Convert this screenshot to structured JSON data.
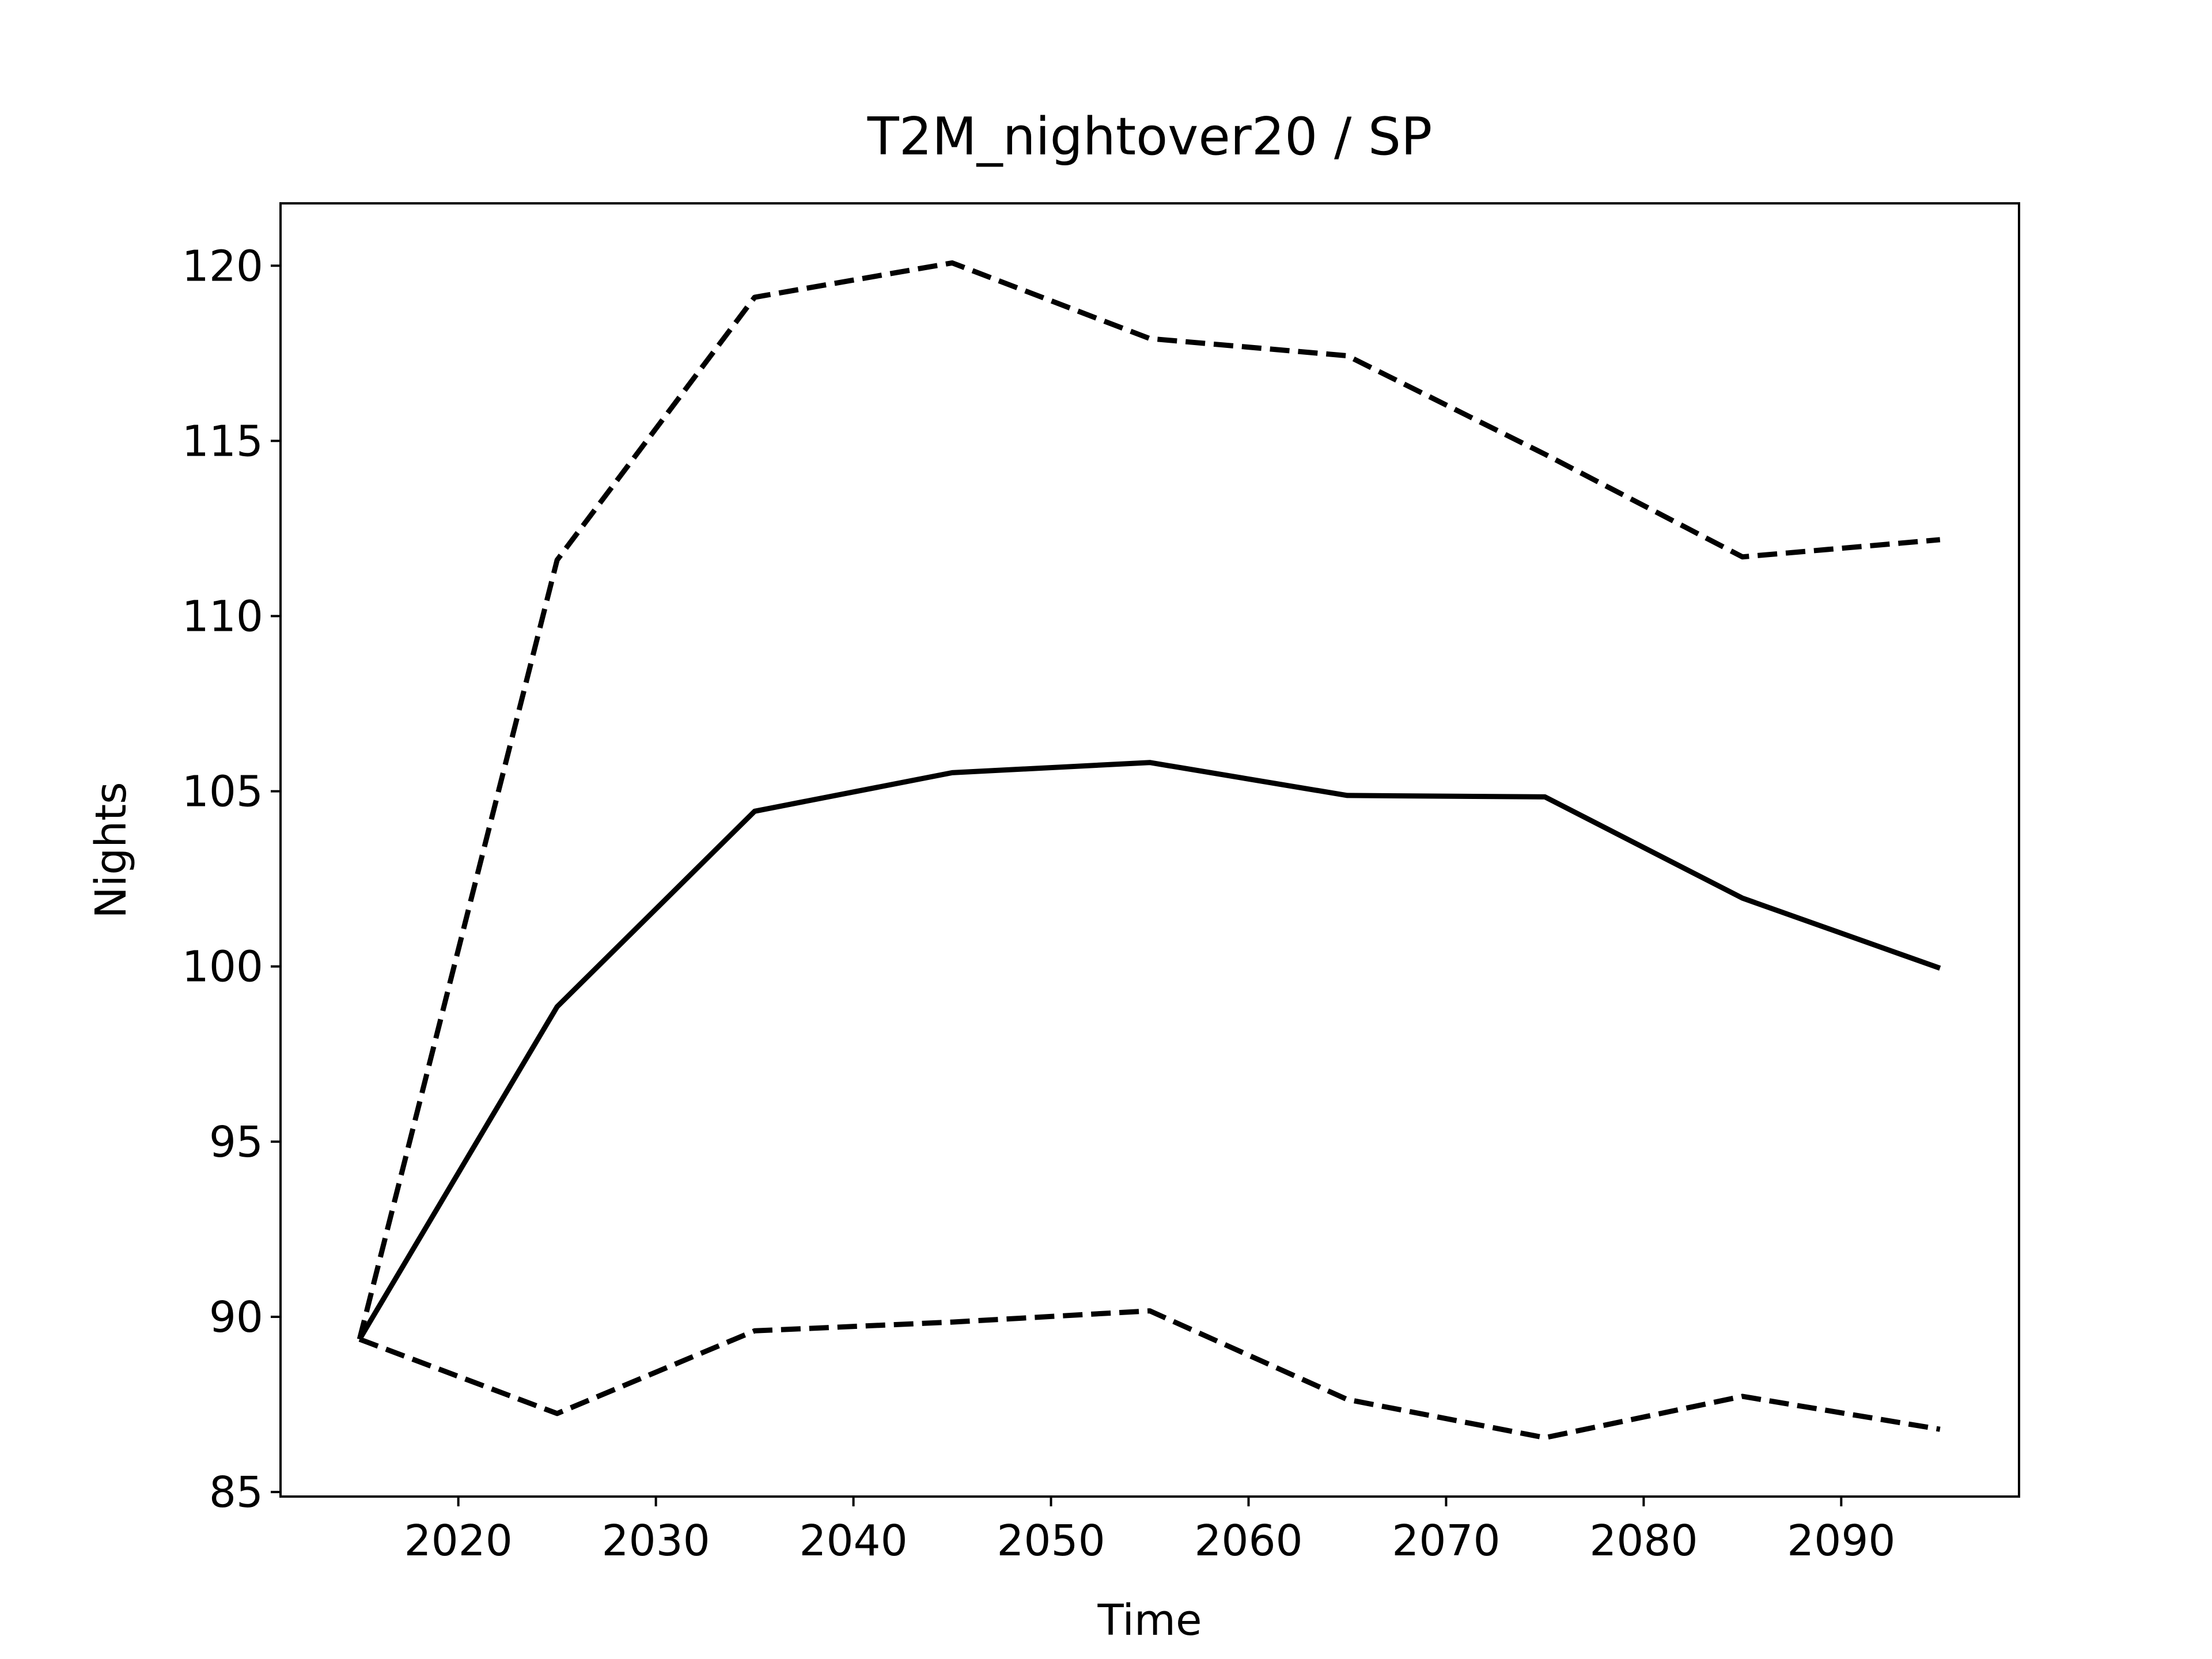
{
  "chart_data": {
    "type": "line",
    "title": "T2M_nightover20 / SP",
    "x_label": "Time",
    "y_label": "Nights",
    "x": [
      2015,
      2025,
      2035,
      2045,
      2055,
      2065,
      2075,
      2085,
      2095
    ],
    "series": [
      {
        "color": "#000000",
        "linestyle": "solid",
        "values": [
          89.36,
          98.85,
          104.43,
          105.53,
          105.82,
          104.88,
          104.84,
          101.95,
          99.95
        ]
      },
      {
        "color": "#000000",
        "linestyle": "dashed",
        "values": [
          89.36,
          111.6,
          119.1,
          120.08,
          117.92,
          117.43,
          114.62,
          111.69,
          112.18
        ]
      },
      {
        "color": "#000000",
        "linestyle": "dashed",
        "values": [
          89.36,
          87.24,
          89.6,
          89.85,
          90.17,
          87.64,
          86.55,
          87.73,
          86.79
        ]
      }
    ],
    "xlim": [
      2011,
      2099
    ],
    "xticks": [
      2020,
      2030,
      2040,
      2050,
      2060,
      2070,
      2080,
      2090
    ],
    "ylim": [
      84.87,
      121.78
    ],
    "yticks": [
      85,
      90,
      95,
      100,
      105,
      110,
      115,
      120
    ],
    "grid": false
  }
}
